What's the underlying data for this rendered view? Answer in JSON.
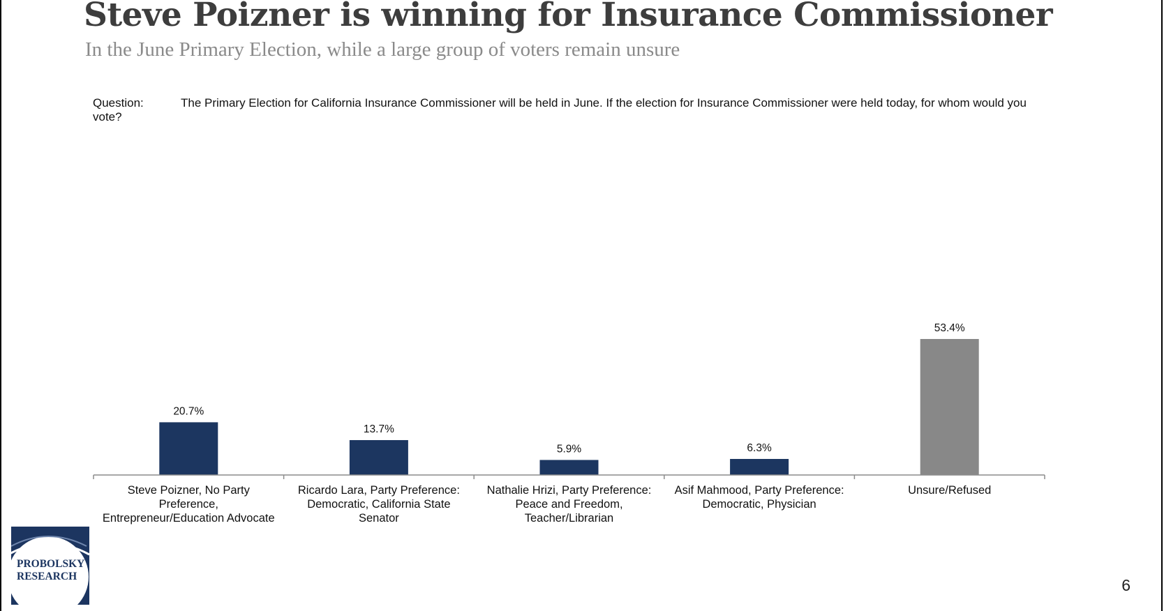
{
  "slide": {
    "title": "Steve Poizner is winning for Insurance Commissioner",
    "subtitle": "In the June Primary Election, while a large group of voters remain unsure",
    "question_label": "Question:",
    "question_text": "The Primary Election for California Insurance Commissioner will be held in June. If the election for Insurance Commissioner were held today, for whom would you vote?",
    "page_number": "6"
  },
  "logo": {
    "line1": "PROBOLSKY",
    "line2": "RESEARCH",
    "color": "#1c3560"
  },
  "chart_data": {
    "type": "bar",
    "categories": [
      [
        "Steve Poizner, No Party",
        "Preference,",
        "Entrepreneur/Education Advocate"
      ],
      [
        "Ricardo Lara, Party Preference:",
        "Democratic, California State",
        "Senator"
      ],
      [
        "Nathalie Hrizi, Party Preference:",
        "Peace and Freedom,",
        "Teacher/Librarian"
      ],
      [
        "Asif Mahmood, Party Preference:",
        "Democratic, Physician"
      ],
      [
        "Unsure/Refused"
      ]
    ],
    "values": [
      20.7,
      13.7,
      5.9,
      6.3,
      53.4
    ],
    "value_labels": [
      "20.7%",
      "13.7%",
      "5.9%",
      "6.3%",
      "53.4%"
    ],
    "colors": [
      "#1c3660",
      "#1c3660",
      "#1c3660",
      "#1c3660",
      "#888888"
    ],
    "ylim": [
      0,
      60
    ],
    "grid": false,
    "legend": "none"
  }
}
